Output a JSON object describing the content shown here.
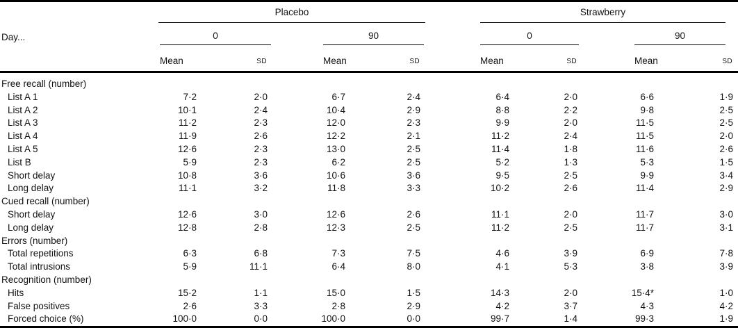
{
  "table": {
    "day_label": "Day...",
    "col_headers": {
      "mean": "Mean",
      "sd": "SD"
    },
    "groups": [
      {
        "label": "Placebo",
        "days": [
          "0",
          "90"
        ]
      },
      {
        "label": "Strawberry",
        "days": [
          "0",
          "90"
        ]
      }
    ],
    "sections": [
      {
        "title": "Free recall (number)",
        "rows": [
          {
            "label": "List A 1",
            "values": [
              "7·2",
              "2·0",
              "6·7",
              "2·4",
              "6·4",
              "2·0",
              "6·6",
              "1·9"
            ]
          },
          {
            "label": "List A 2",
            "values": [
              "10·1",
              "2·4",
              "10·4",
              "2·9",
              "8·8",
              "2·2",
              "9·8",
              "2·5"
            ]
          },
          {
            "label": "List A 3",
            "values": [
              "11·2",
              "2·3",
              "12·0",
              "2·3",
              "9·9",
              "2·0",
              "11·5",
              "2·5"
            ]
          },
          {
            "label": "List A 4",
            "values": [
              "11·9",
              "2·6",
              "12·2",
              "2·1",
              "11·2",
              "2·4",
              "11·5",
              "2·0"
            ]
          },
          {
            "label": "List A 5",
            "values": [
              "12·6",
              "2·3",
              "13·0",
              "2·5",
              "11·4",
              "1·8",
              "11·6",
              "2·6"
            ]
          },
          {
            "label": "List B",
            "values": [
              "5·9",
              "2·3",
              "6·2",
              "2·5",
              "5·2",
              "1·3",
              "5·3",
              "1·5"
            ]
          },
          {
            "label": "Short delay",
            "values": [
              "10·8",
              "3·6",
              "10·6",
              "3·6",
              "9·5",
              "2·5",
              "9·9",
              "3·4"
            ]
          },
          {
            "label": "Long delay",
            "values": [
              "11·1",
              "3·2",
              "11·8",
              "3·3",
              "10·2",
              "2·6",
              "11·4",
              "2·9"
            ]
          }
        ]
      },
      {
        "title": "Cued recall (number)",
        "rows": [
          {
            "label": "Short delay",
            "values": [
              "12·6",
              "3·0",
              "12·6",
              "2·6",
              "11·1",
              "2·0",
              "11·7",
              "3·0"
            ]
          },
          {
            "label": "Long delay",
            "values": [
              "12·8",
              "2·8",
              "12·3",
              "2·5",
              "11·2",
              "2·5",
              "11·7",
              "3·1"
            ]
          }
        ]
      },
      {
        "title": "Errors (number)",
        "rows": [
          {
            "label": "Total repetitions",
            "values": [
              "6·3",
              "6·8",
              "7·3",
              "7·5",
              "4·6",
              "3·9",
              "6·9",
              "7·8"
            ]
          },
          {
            "label": "Total intrusions",
            "values": [
              "5·9",
              "11·1",
              "6·4",
              "8·0",
              "4·1",
              "5·3",
              "3·8",
              "3·9"
            ]
          }
        ]
      },
      {
        "title": "Recognition (number)",
        "rows": [
          {
            "label": "Hits",
            "values": [
              "15·2",
              "1·1",
              "15·0",
              "1·5",
              "14·3",
              "2·0",
              "15·4*",
              "1·0"
            ]
          },
          {
            "label": "False positives",
            "values": [
              "2·6",
              "3·3",
              "2·8",
              "2·9",
              "4·2",
              "3·7",
              "4·3",
              "4·2"
            ]
          },
          {
            "label": "Forced choice (%)",
            "values": [
              "100·0",
              "0·0",
              "100·0",
              "0·0",
              "99·7",
              "1·4",
              "99·3",
              "1·9"
            ]
          }
        ]
      }
    ]
  }
}
